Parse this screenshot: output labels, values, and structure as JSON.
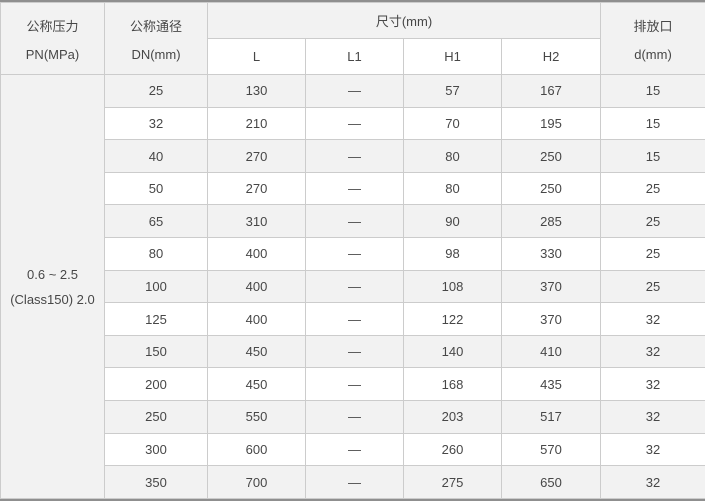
{
  "table": {
    "header": {
      "pressure": {
        "line1": "公称压力",
        "line2": "PN(MPa)"
      },
      "diameter": {
        "line1": "公称通径",
        "line2": "DN(mm)"
      },
      "dimensions_group": "尺寸(mm)",
      "dimension_columns": [
        "L",
        "L1",
        "H1",
        "H2"
      ],
      "drain": {
        "line1": "排放口",
        "line2": "d(mm)"
      }
    },
    "pressure_cell": {
      "line1": "0.6 ~ 2.5",
      "line2": "(Class150) 2.0"
    },
    "rows": [
      {
        "dn": "25",
        "l": "130",
        "l1": "—",
        "h1": "57",
        "h2": "167",
        "d": "15"
      },
      {
        "dn": "32",
        "l": "210",
        "l1": "—",
        "h1": "70",
        "h2": "195",
        "d": "15"
      },
      {
        "dn": "40",
        "l": "270",
        "l1": "—",
        "h1": "80",
        "h2": "250",
        "d": "15"
      },
      {
        "dn": "50",
        "l": "270",
        "l1": "—",
        "h1": "80",
        "h2": "250",
        "d": "25"
      },
      {
        "dn": "65",
        "l": "310",
        "l1": "—",
        "h1": "90",
        "h2": "285",
        "d": "25"
      },
      {
        "dn": "80",
        "l": "400",
        "l1": "—",
        "h1": "98",
        "h2": "330",
        "d": "25"
      },
      {
        "dn": "100",
        "l": "400",
        "l1": "—",
        "h1": "108",
        "h2": "370",
        "d": "25"
      },
      {
        "dn": "125",
        "l": "400",
        "l1": "—",
        "h1": "122",
        "h2": "370",
        "d": "32"
      },
      {
        "dn": "150",
        "l": "450",
        "l1": "—",
        "h1": "140",
        "h2": "410",
        "d": "32"
      },
      {
        "dn": "200",
        "l": "450",
        "l1": "—",
        "h1": "168",
        "h2": "435",
        "d": "32"
      },
      {
        "dn": "250",
        "l": "550",
        "l1": "—",
        "h1": "203",
        "h2": "517",
        "d": "32"
      },
      {
        "dn": "300",
        "l": "600",
        "l1": "—",
        "h1": "260",
        "h2": "570",
        "d": "32"
      },
      {
        "dn": "350",
        "l": "700",
        "l1": "—",
        "h1": "275",
        "h2": "650",
        "d": "32"
      }
    ]
  },
  "colors": {
    "stripe_gray": "#f2f2f2",
    "header_gray": "#f2f2f2",
    "border_light": "#cccccc",
    "border_dark": "#8f8f8f",
    "text": "#474747",
    "background": "#ffffff"
  }
}
